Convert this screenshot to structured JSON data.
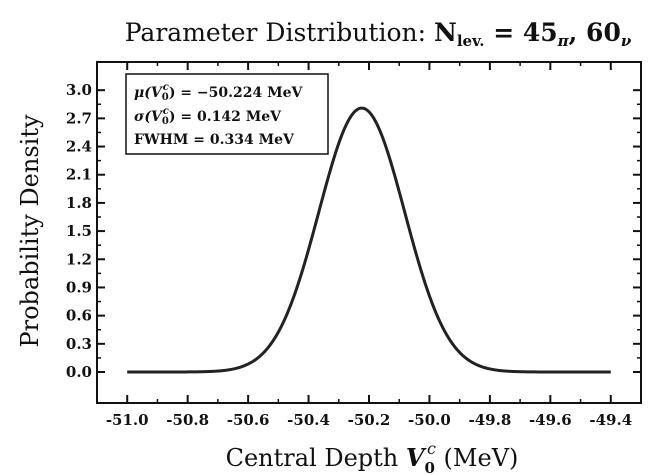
{
  "chart_data": {
    "type": "line",
    "title": {
      "prefix": "Parameter Distribution: ",
      "n": "N",
      "n_sub": "lev.",
      "eq": " = 45",
      "pi": "π",
      "comma": ", 60",
      "nu": "ν"
    },
    "xlabel": {
      "prefix": "Central Depth ",
      "v": "V",
      "sub": "0",
      "sup": "c",
      "unit": " (MeV)"
    },
    "ylabel": "Probability Density",
    "xlim": [
      -51.1,
      -49.3
    ],
    "ylim": [
      -0.33,
      3.3
    ],
    "x_ticks": [
      -51.0,
      -50.8,
      -50.6,
      -50.4,
      -50.2,
      -50.0,
      -49.8,
      -49.6,
      -49.4
    ],
    "x_tick_labels": [
      "-51.0",
      "-50.8",
      "-50.6",
      "-50.4",
      "-50.2",
      "-50.0",
      "-49.8",
      "-49.6",
      "-49.4"
    ],
    "y_ticks": [
      0.0,
      0.3,
      0.6,
      0.9,
      1.2,
      1.5,
      1.8,
      2.1,
      2.4,
      2.7,
      3.0
    ],
    "y_tick_labels": [
      "0.0",
      "0.3",
      "0.6",
      "0.9",
      "1.2",
      "1.5",
      "1.8",
      "2.1",
      "2.4",
      "2.7",
      "3.0"
    ],
    "series": [
      {
        "distribution": "gaussian",
        "mean": -50.224,
        "sigma": 0.142,
        "x_range": [
          -51.0,
          -49.4
        ],
        "color": "#222222"
      }
    ],
    "annotation": {
      "lines": [
        {
          "func": "μ(",
          "v": "V",
          "sub": "0",
          "sup": "c",
          "rest": ") = −50.224 MeV"
        },
        {
          "func": "σ(",
          "v": "V",
          "sub": "0",
          "sup": "c",
          "rest": ") = 0.142 MeV"
        },
        {
          "func": "FWHM = 0.334 MeV"
        }
      ]
    },
    "grid": false,
    "colors": {
      "line": "#222222",
      "axes": "#111111"
    }
  }
}
